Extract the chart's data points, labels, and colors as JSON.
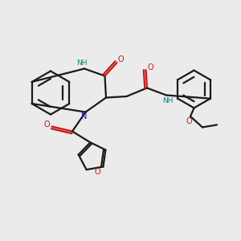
{
  "background_color": "#ebebeb",
  "bond_color": "#1a1a1a",
  "n_color": "#1414cc",
  "o_color": "#cc1414",
  "nh_color": "#008080",
  "line_width": 1.6,
  "figsize": [
    3.0,
    3.0
  ],
  "dpi": 100,
  "xlim": [
    0,
    10
  ],
  "ylim": [
    0,
    10
  ]
}
